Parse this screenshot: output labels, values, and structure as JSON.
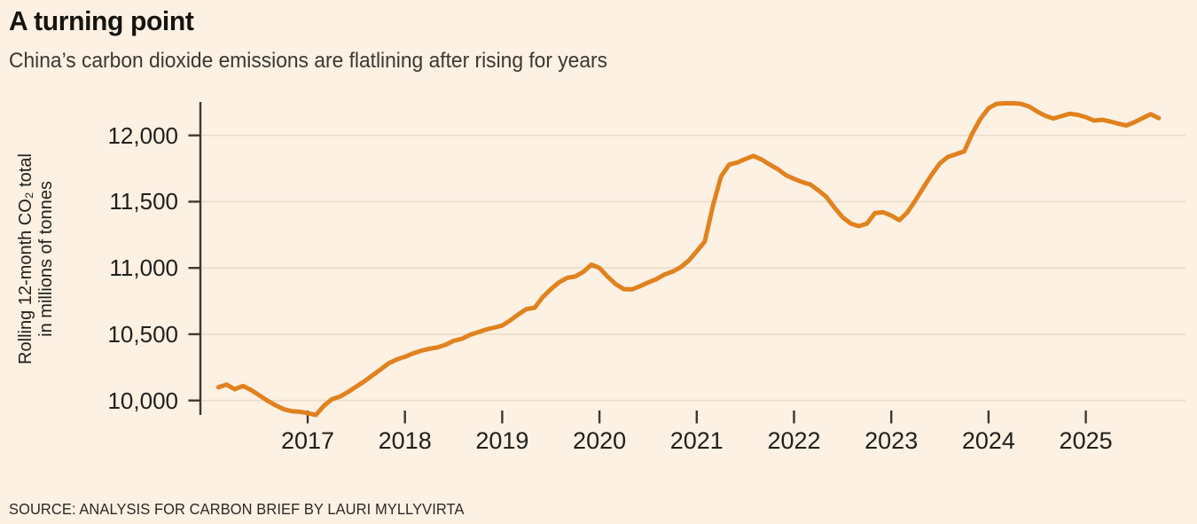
{
  "page": {
    "title": "A turning point",
    "subtitle": "China’s carbon dioxide emissions are flatlining after rising for years",
    "source": "SOURCE: ANALYSIS FOR CARBON BRIEF BY LAURI MYLLYVIRTA"
  },
  "colors": {
    "background": "#fdf1e4",
    "line": "#e1821e",
    "grid": "#e9dcca",
    "axis": "#3c3933",
    "tick_text": "#21201c"
  },
  "chart_data": {
    "type": "line",
    "title": "A turning point",
    "subtitle": "China’s carbon dioxide emissions are flatlining after rising for years",
    "ylabel": "Rolling 12-month CO₂ total in millions of tonnes",
    "ylabel_lines": [
      "Rolling 12-month CO₂ total",
      "in millions of tonnes"
    ],
    "source": "SOURCE: ANALYSIS FOR CARBON BRIEF BY LAURI MYLLYVIRTA",
    "grid": "horizontal-only",
    "legend": "none",
    "ylim": [
      9890,
      12250
    ],
    "xlim_years": [
      2016.08,
      2025.79
    ],
    "y_ticks": [
      {
        "value": 10000,
        "label": "10,000"
      },
      {
        "value": 10500,
        "label": "10,500"
      },
      {
        "value": 11000,
        "label": "11,000"
      },
      {
        "value": 11500,
        "label": "11,500"
      },
      {
        "value": 12000,
        "label": "12,000"
      }
    ],
    "x_ticks": [
      {
        "value": 2017,
        "label": "2017"
      },
      {
        "value": 2018,
        "label": "2018"
      },
      {
        "value": 2019,
        "label": "2019"
      },
      {
        "value": 2020,
        "label": "2020"
      },
      {
        "value": 2021,
        "label": "2021"
      },
      {
        "value": 2022,
        "label": "2022"
      },
      {
        "value": 2023,
        "label": "2023"
      },
      {
        "value": 2024,
        "label": "2024"
      },
      {
        "value": 2025,
        "label": "2025"
      }
    ],
    "series": [
      {
        "name": "Rolling 12-month CO₂ total in millions of tonnes",
        "color": "#e1821e",
        "points": [
          [
            "2016-02",
            10100
          ],
          [
            "2016-03",
            10120
          ],
          [
            "2016-04",
            10085
          ],
          [
            "2016-05",
            10110
          ],
          [
            "2016-06",
            10080
          ],
          [
            "2016-07",
            10040
          ],
          [
            "2016-08",
            10000
          ],
          [
            "2016-09",
            9965
          ],
          [
            "2016-10",
            9935
          ],
          [
            "2016-11",
            9920
          ],
          [
            "2016-12",
            9915
          ],
          [
            "2017-01",
            9905
          ],
          [
            "2017-02",
            9890
          ],
          [
            "2017-03",
            9960
          ],
          [
            "2017-04",
            10010
          ],
          [
            "2017-05",
            10030
          ],
          [
            "2017-06",
            10065
          ],
          [
            "2017-07",
            10105
          ],
          [
            "2017-08",
            10145
          ],
          [
            "2017-09",
            10190
          ],
          [
            "2017-10",
            10235
          ],
          [
            "2017-11",
            10280
          ],
          [
            "2017-12",
            10310
          ],
          [
            "2018-01",
            10330
          ],
          [
            "2018-02",
            10355
          ],
          [
            "2018-03",
            10375
          ],
          [
            "2018-04",
            10390
          ],
          [
            "2018-05",
            10400
          ],
          [
            "2018-06",
            10420
          ],
          [
            "2018-07",
            10450
          ],
          [
            "2018-08",
            10465
          ],
          [
            "2018-09",
            10495
          ],
          [
            "2018-10",
            10515
          ],
          [
            "2018-11",
            10535
          ],
          [
            "2018-12",
            10550
          ],
          [
            "2019-01",
            10565
          ],
          [
            "2019-02",
            10605
          ],
          [
            "2019-03",
            10650
          ],
          [
            "2019-04",
            10690
          ],
          [
            "2019-05",
            10700
          ],
          [
            "2019-06",
            10780
          ],
          [
            "2019-07",
            10840
          ],
          [
            "2019-08",
            10890
          ],
          [
            "2019-09",
            10925
          ],
          [
            "2019-10",
            10935
          ],
          [
            "2019-11",
            10970
          ],
          [
            "2019-12",
            11025
          ],
          [
            "2020-01",
            11000
          ],
          [
            "2020-02",
            10935
          ],
          [
            "2020-03",
            10878
          ],
          [
            "2020-04",
            10840
          ],
          [
            "2020-05",
            10838
          ],
          [
            "2020-06",
            10862
          ],
          [
            "2020-07",
            10890
          ],
          [
            "2020-08",
            10915
          ],
          [
            "2020-09",
            10950
          ],
          [
            "2020-10",
            10972
          ],
          [
            "2020-11",
            11005
          ],
          [
            "2020-12",
            11055
          ],
          [
            "2021-01",
            11125
          ],
          [
            "2021-02",
            11200
          ],
          [
            "2021-03",
            11470
          ],
          [
            "2021-04",
            11690
          ],
          [
            "2021-05",
            11780
          ],
          [
            "2021-06",
            11795
          ],
          [
            "2021-07",
            11822
          ],
          [
            "2021-08",
            11845
          ],
          [
            "2021-09",
            11818
          ],
          [
            "2021-10",
            11780
          ],
          [
            "2021-11",
            11745
          ],
          [
            "2021-12",
            11700
          ],
          [
            "2022-01",
            11672
          ],
          [
            "2022-02",
            11648
          ],
          [
            "2022-03",
            11630
          ],
          [
            "2022-04",
            11585
          ],
          [
            "2022-05",
            11535
          ],
          [
            "2022-06",
            11455
          ],
          [
            "2022-07",
            11382
          ],
          [
            "2022-08",
            11335
          ],
          [
            "2022-09",
            11315
          ],
          [
            "2022-10",
            11335
          ],
          [
            "2022-11",
            11415
          ],
          [
            "2022-12",
            11420
          ],
          [
            "2023-01",
            11395
          ],
          [
            "2023-02",
            11360
          ],
          [
            "2023-03",
            11420
          ],
          [
            "2023-04",
            11512
          ],
          [
            "2023-05",
            11610
          ],
          [
            "2023-06",
            11705
          ],
          [
            "2023-07",
            11790
          ],
          [
            "2023-08",
            11838
          ],
          [
            "2023-09",
            11858
          ],
          [
            "2023-10",
            11880
          ],
          [
            "2023-11",
            12015
          ],
          [
            "2023-12",
            12125
          ],
          [
            "2024-01",
            12205
          ],
          [
            "2024-02",
            12238
          ],
          [
            "2024-03",
            12242
          ],
          [
            "2024-04",
            12242
          ],
          [
            "2024-05",
            12238
          ],
          [
            "2024-06",
            12218
          ],
          [
            "2024-07",
            12180
          ],
          [
            "2024-08",
            12148
          ],
          [
            "2024-09",
            12128
          ],
          [
            "2024-10",
            12145
          ],
          [
            "2024-11",
            12163
          ],
          [
            "2024-12",
            12155
          ],
          [
            "2025-01",
            12138
          ],
          [
            "2025-02",
            12112
          ],
          [
            "2025-03",
            12118
          ],
          [
            "2025-04",
            12105
          ],
          [
            "2025-05",
            12088
          ],
          [
            "2025-06",
            12075
          ],
          [
            "2025-07",
            12100
          ],
          [
            "2025-08",
            12130
          ],
          [
            "2025-09",
            12160
          ],
          [
            "2025-10",
            12130
          ]
        ]
      }
    ]
  }
}
